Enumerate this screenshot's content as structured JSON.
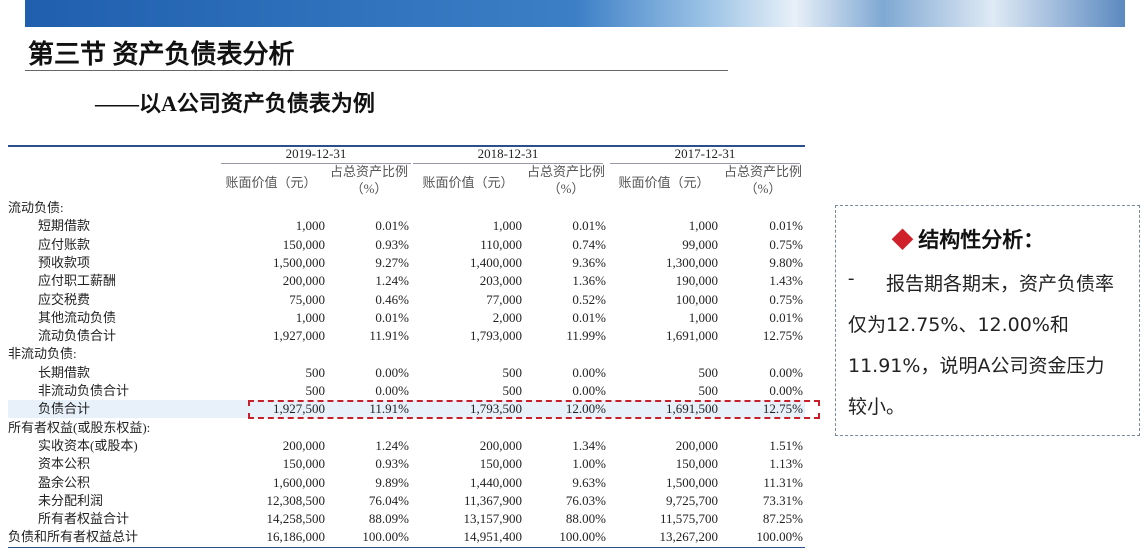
{
  "header": {
    "title": "第三节 资产负债表分析",
    "subtitle": "——以A公司资产负债表为例"
  },
  "table": {
    "years": [
      "2019-12-31",
      "2018-12-31",
      "2017-12-31"
    ],
    "column_headers": [
      "账面价值（元）",
      "占总资产比例（%）"
    ],
    "sections": [
      {
        "label": "流动负债:",
        "rows": [
          {
            "label": "短期借款",
            "values": [
              "1,000",
              "0.01%",
              "1,000",
              "0.01%",
              "1,000",
              "0.01%"
            ]
          },
          {
            "label": "应付账款",
            "values": [
              "150,000",
              "0.93%",
              "110,000",
              "0.74%",
              "99,000",
              "0.75%"
            ]
          },
          {
            "label": "预收款项",
            "values": [
              "1,500,000",
              "9.27%",
              "1,400,000",
              "9.36%",
              "1,300,000",
              "9.80%"
            ]
          },
          {
            "label": "应付职工薪酬",
            "values": [
              "200,000",
              "1.24%",
              "203,000",
              "1.36%",
              "190,000",
              "1.43%"
            ]
          },
          {
            "label": "应交税费",
            "values": [
              "75,000",
              "0.46%",
              "77,000",
              "0.52%",
              "100,000",
              "0.75%"
            ]
          },
          {
            "label": "其他流动负债",
            "values": [
              "1,000",
              "0.01%",
              "2,000",
              "0.01%",
              "1,000",
              "0.01%"
            ]
          },
          {
            "label": "流动负债合计",
            "values": [
              "1,927,000",
              "11.91%",
              "1,793,000",
              "11.99%",
              "1,691,000",
              "12.75%"
            ]
          }
        ]
      },
      {
        "label": "非流动负债:",
        "rows": [
          {
            "label": "长期借款",
            "values": [
              "500",
              "0.00%",
              "500",
              "0.00%",
              "500",
              "0.00%"
            ]
          },
          {
            "label": "非流动负债合计",
            "values": [
              "500",
              "0.00%",
              "500",
              "0.00%",
              "500",
              "0.00%"
            ]
          },
          {
            "label": "负债合计",
            "values": [
              "1,927,500",
              "11.91%",
              "1,793,500",
              "12.00%",
              "1,691,500",
              "12.75%"
            ],
            "highlighted": true
          }
        ]
      },
      {
        "label": "所有者权益(或股东权益):",
        "rows": [
          {
            "label": "实收资本(或股本)",
            "values": [
              "200,000",
              "1.24%",
              "200,000",
              "1.34%",
              "200,000",
              "1.51%"
            ]
          },
          {
            "label": "资本公积",
            "values": [
              "150,000",
              "0.93%",
              "150,000",
              "1.00%",
              "150,000",
              "1.13%"
            ]
          },
          {
            "label": "盈余公积",
            "values": [
              "1,600,000",
              "9.89%",
              "1,440,000",
              "9.63%",
              "1,500,000",
              "11.31%"
            ]
          },
          {
            "label": "未分配利润",
            "values": [
              "12,308,500",
              "76.04%",
              "11,367,900",
              "76.03%",
              "9,725,700",
              "73.31%"
            ]
          },
          {
            "label": "所有者权益合计",
            "values": [
              "14,258,500",
              "88.09%",
              "13,157,900",
              "88.00%",
              "11,575,700",
              "87.25%"
            ]
          }
        ]
      }
    ],
    "grand_total": {
      "label": "负债和所有者权益总计",
      "values": [
        "16,186,000",
        "100.00%",
        "14,951,400",
        "100.00%",
        "13,267,200",
        "100.00%"
      ]
    }
  },
  "callout": {
    "title": "◆ 结构性分析：",
    "bullet": "-",
    "text": "报告期各期末，资产负债率仅为12.75%、12.00%和11.91%，说明A公司资金压力较小。"
  }
}
